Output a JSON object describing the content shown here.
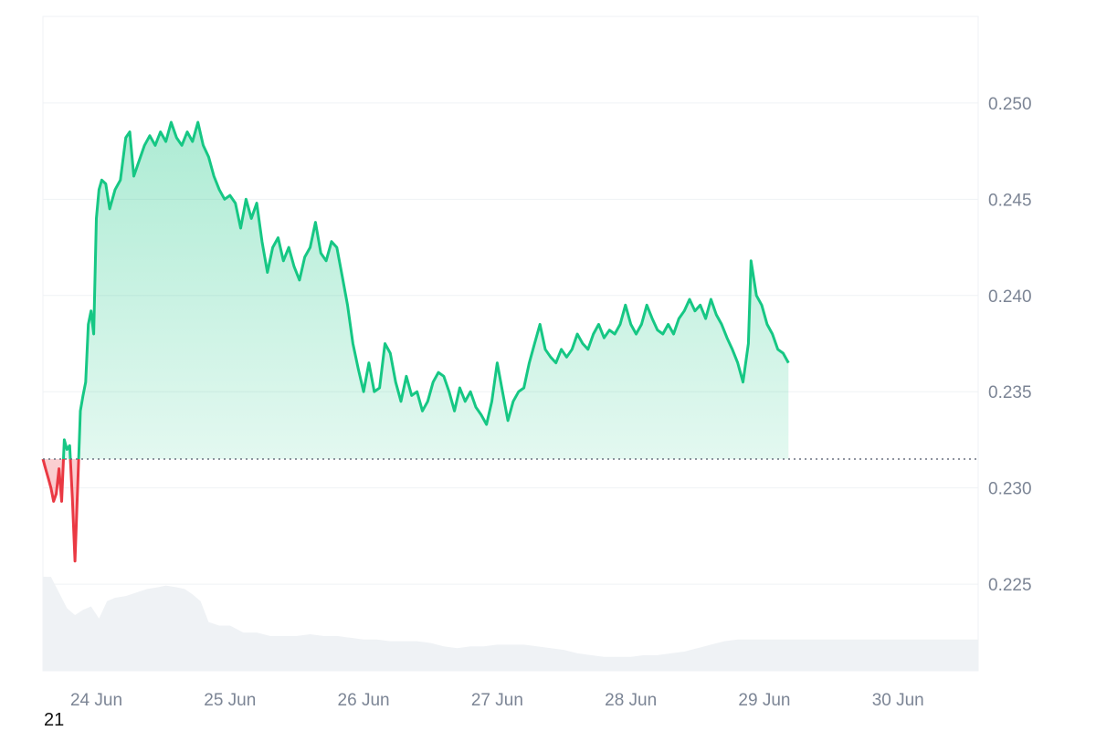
{
  "footer_label": "21",
  "chart_data": {
    "type": "area",
    "title": "",
    "xlabel": "",
    "ylabel": "",
    "ylim": [
      0.2205,
      0.2545
    ],
    "y_ticks": [
      "0.250",
      "0.245",
      "0.240",
      "0.235",
      "0.230",
      "0.225"
    ],
    "y_tick_values": [
      0.25,
      0.245,
      0.24,
      0.235,
      0.23,
      0.225
    ],
    "x_ticks": [
      "24 Jun",
      "25 Jun",
      "26 Jun",
      "27 Jun",
      "28 Jun",
      "29 Jun",
      "30 Jun"
    ],
    "x_tick_days": [
      24,
      25,
      26,
      27,
      28,
      29,
      30
    ],
    "x_range_days": [
      23.6,
      30.6
    ],
    "baseline": 0.2315,
    "grid": true,
    "colors": {
      "up": "#16c784",
      "down": "#ea3943",
      "volume": "#eff2f5",
      "grid": "#eff2f5",
      "baseline": "#6b7280"
    },
    "series": [
      {
        "points": [
          [
            23.6,
            0.2315
          ],
          [
            23.62,
            0.231
          ],
          [
            23.64,
            0.2305
          ],
          [
            23.66,
            0.23
          ],
          [
            23.68,
            0.2293
          ],
          [
            23.7,
            0.2297
          ],
          [
            23.72,
            0.231
          ],
          [
            23.74,
            0.2293
          ],
          [
            23.76,
            0.2325
          ],
          [
            23.78,
            0.232
          ],
          [
            23.8,
            0.2322
          ],
          [
            23.82,
            0.2295
          ],
          [
            23.84,
            0.2262
          ],
          [
            23.86,
            0.23
          ],
          [
            23.88,
            0.234
          ],
          [
            23.9,
            0.2348
          ],
          [
            23.92,
            0.2355
          ],
          [
            23.94,
            0.2385
          ],
          [
            23.96,
            0.2392
          ],
          [
            23.98,
            0.238
          ],
          [
            24.0,
            0.244
          ],
          [
            24.02,
            0.2455
          ],
          [
            24.04,
            0.246
          ],
          [
            24.07,
            0.2458
          ],
          [
            24.1,
            0.2445
          ],
          [
            24.14,
            0.2455
          ],
          [
            24.18,
            0.246
          ],
          [
            24.22,
            0.2482
          ],
          [
            24.25,
            0.2485
          ],
          [
            24.28,
            0.2462
          ],
          [
            24.32,
            0.247
          ],
          [
            24.36,
            0.2478
          ],
          [
            24.4,
            0.2483
          ],
          [
            24.44,
            0.2478
          ],
          [
            24.48,
            0.2485
          ],
          [
            24.52,
            0.248
          ],
          [
            24.56,
            0.249
          ],
          [
            24.6,
            0.2482
          ],
          [
            24.64,
            0.2478
          ],
          [
            24.68,
            0.2485
          ],
          [
            24.72,
            0.248
          ],
          [
            24.76,
            0.249
          ],
          [
            24.8,
            0.2478
          ],
          [
            24.84,
            0.2472
          ],
          [
            24.88,
            0.2462
          ],
          [
            24.92,
            0.2455
          ],
          [
            24.96,
            0.245
          ],
          [
            25.0,
            0.2452
          ],
          [
            25.04,
            0.2448
          ],
          [
            25.08,
            0.2435
          ],
          [
            25.12,
            0.245
          ],
          [
            25.16,
            0.244
          ],
          [
            25.2,
            0.2448
          ],
          [
            25.24,
            0.2428
          ],
          [
            25.28,
            0.2412
          ],
          [
            25.32,
            0.2425
          ],
          [
            25.36,
            0.243
          ],
          [
            25.4,
            0.2418
          ],
          [
            25.44,
            0.2425
          ],
          [
            25.48,
            0.2415
          ],
          [
            25.52,
            0.2408
          ],
          [
            25.56,
            0.242
          ],
          [
            25.6,
            0.2425
          ],
          [
            25.64,
            0.2438
          ],
          [
            25.68,
            0.2422
          ],
          [
            25.72,
            0.2418
          ],
          [
            25.76,
            0.2428
          ],
          [
            25.8,
            0.2425
          ],
          [
            25.84,
            0.241
          ],
          [
            25.88,
            0.2395
          ],
          [
            25.92,
            0.2375
          ],
          [
            25.96,
            0.2362
          ],
          [
            26.0,
            0.235
          ],
          [
            26.04,
            0.2365
          ],
          [
            26.08,
            0.235
          ],
          [
            26.12,
            0.2352
          ],
          [
            26.16,
            0.2375
          ],
          [
            26.2,
            0.237
          ],
          [
            26.24,
            0.2355
          ],
          [
            26.28,
            0.2345
          ],
          [
            26.32,
            0.2358
          ],
          [
            26.36,
            0.2348
          ],
          [
            26.4,
            0.235
          ],
          [
            26.44,
            0.234
          ],
          [
            26.48,
            0.2345
          ],
          [
            26.52,
            0.2355
          ],
          [
            26.56,
            0.236
          ],
          [
            26.6,
            0.2358
          ],
          [
            26.64,
            0.235
          ],
          [
            26.68,
            0.234
          ],
          [
            26.72,
            0.2352
          ],
          [
            26.76,
            0.2345
          ],
          [
            26.8,
            0.235
          ],
          [
            26.84,
            0.2342
          ],
          [
            26.88,
            0.2338
          ],
          [
            26.92,
            0.2333
          ],
          [
            26.96,
            0.2345
          ],
          [
            27.0,
            0.2365
          ],
          [
            27.04,
            0.235
          ],
          [
            27.08,
            0.2335
          ],
          [
            27.12,
            0.2345
          ],
          [
            27.16,
            0.235
          ],
          [
            27.2,
            0.2352
          ],
          [
            27.24,
            0.2365
          ],
          [
            27.28,
            0.2375
          ],
          [
            27.32,
            0.2385
          ],
          [
            27.36,
            0.2372
          ],
          [
            27.4,
            0.2368
          ],
          [
            27.44,
            0.2365
          ],
          [
            27.48,
            0.2372
          ],
          [
            27.52,
            0.2368
          ],
          [
            27.56,
            0.2372
          ],
          [
            27.6,
            0.238
          ],
          [
            27.64,
            0.2375
          ],
          [
            27.68,
            0.2372
          ],
          [
            27.72,
            0.238
          ],
          [
            27.76,
            0.2385
          ],
          [
            27.8,
            0.2378
          ],
          [
            27.84,
            0.2382
          ],
          [
            27.88,
            0.238
          ],
          [
            27.92,
            0.2385
          ],
          [
            27.96,
            0.2395
          ],
          [
            28.0,
            0.2385
          ],
          [
            28.04,
            0.238
          ],
          [
            28.08,
            0.2385
          ],
          [
            28.12,
            0.2395
          ],
          [
            28.16,
            0.2388
          ],
          [
            28.2,
            0.2382
          ],
          [
            28.24,
            0.238
          ],
          [
            28.28,
            0.2385
          ],
          [
            28.32,
            0.238
          ],
          [
            28.36,
            0.2388
          ],
          [
            28.4,
            0.2392
          ],
          [
            28.44,
            0.2398
          ],
          [
            28.48,
            0.2392
          ],
          [
            28.52,
            0.2395
          ],
          [
            28.56,
            0.2388
          ],
          [
            28.6,
            0.2398
          ],
          [
            28.64,
            0.239
          ],
          [
            28.68,
            0.2385
          ],
          [
            28.72,
            0.2378
          ],
          [
            28.76,
            0.2372
          ],
          [
            28.8,
            0.2365
          ],
          [
            28.84,
            0.2355
          ],
          [
            28.88,
            0.2375
          ],
          [
            28.9,
            0.2418
          ],
          [
            28.94,
            0.24
          ],
          [
            28.98,
            0.2395
          ],
          [
            29.02,
            0.2385
          ],
          [
            29.06,
            0.238
          ],
          [
            29.1,
            0.2372
          ],
          [
            29.14,
            0.237
          ],
          [
            29.18,
            0.2365
          ]
        ],
        "day_scale": 1
      }
    ],
    "volume": [
      [
        23.6,
        0.55
      ],
      [
        23.66,
        0.54
      ],
      [
        23.72,
        0.45
      ],
      [
        23.78,
        0.36
      ],
      [
        23.84,
        0.32
      ],
      [
        23.9,
        0.35
      ],
      [
        23.96,
        0.37
      ],
      [
        24.02,
        0.3
      ],
      [
        24.08,
        0.4
      ],
      [
        24.14,
        0.42
      ],
      [
        24.22,
        0.43
      ],
      [
        24.3,
        0.45
      ],
      [
        24.38,
        0.47
      ],
      [
        24.46,
        0.48
      ],
      [
        24.52,
        0.49
      ],
      [
        24.6,
        0.48
      ],
      [
        24.66,
        0.47
      ],
      [
        24.72,
        0.44
      ],
      [
        24.78,
        0.4
      ],
      [
        24.84,
        0.28
      ],
      [
        24.92,
        0.26
      ],
      [
        25.0,
        0.26
      ],
      [
        25.1,
        0.22
      ],
      [
        25.2,
        0.22
      ],
      [
        25.3,
        0.2
      ],
      [
        25.4,
        0.2
      ],
      [
        25.5,
        0.2
      ],
      [
        25.6,
        0.21
      ],
      [
        25.7,
        0.2
      ],
      [
        25.8,
        0.2
      ],
      [
        25.9,
        0.19
      ],
      [
        26.0,
        0.18
      ],
      [
        26.1,
        0.18
      ],
      [
        26.2,
        0.17
      ],
      [
        26.3,
        0.17
      ],
      [
        26.4,
        0.17
      ],
      [
        26.5,
        0.16
      ],
      [
        26.6,
        0.14
      ],
      [
        26.7,
        0.13
      ],
      [
        26.8,
        0.14
      ],
      [
        26.9,
        0.14
      ],
      [
        27.0,
        0.15
      ],
      [
        27.1,
        0.15
      ],
      [
        27.2,
        0.15
      ],
      [
        27.3,
        0.14
      ],
      [
        27.4,
        0.13
      ],
      [
        27.5,
        0.12
      ],
      [
        27.6,
        0.1
      ],
      [
        27.7,
        0.09
      ],
      [
        27.8,
        0.08
      ],
      [
        27.9,
        0.08
      ],
      [
        28.0,
        0.08
      ],
      [
        28.1,
        0.09
      ],
      [
        28.2,
        0.09
      ],
      [
        28.3,
        0.1
      ],
      [
        28.4,
        0.11
      ],
      [
        28.5,
        0.13
      ],
      [
        28.6,
        0.15
      ],
      [
        28.7,
        0.17
      ],
      [
        28.8,
        0.18
      ]
    ]
  }
}
